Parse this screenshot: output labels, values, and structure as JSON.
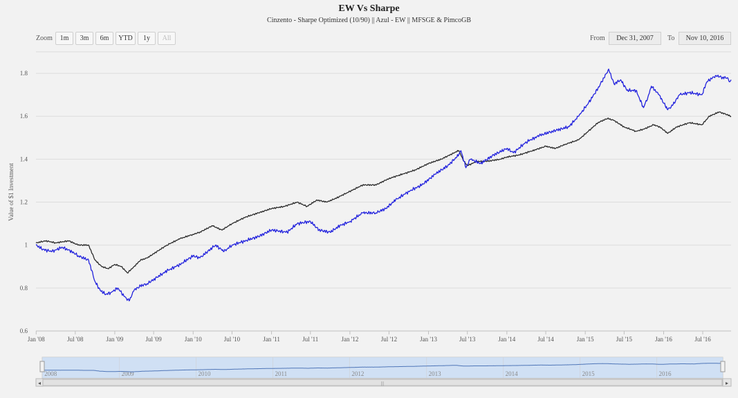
{
  "chart": {
    "title": "EW Vs Sharpe",
    "subtitle": "Cinzento - Sharpe Optimized (10/90) || Azul - EW || MFSGE & PimcoGB"
  },
  "range_selector": {
    "zoom_label": "Zoom",
    "buttons": [
      {
        "label": "1m"
      },
      {
        "label": "3m"
      },
      {
        "label": "6m"
      },
      {
        "label": "YTD"
      },
      {
        "label": "1y"
      },
      {
        "label": "All"
      }
    ],
    "from_label": "From",
    "from_value": "Dec 31, 2007",
    "to_label": "To",
    "to_value": "Nov 10, 2016"
  },
  "navigator": {
    "year_labels": [
      "2008",
      "2009",
      "2010",
      "2011",
      "2012",
      "2013",
      "2014",
      "2015",
      "2016"
    ],
    "scroll_left": "◂",
    "scroll_right": "▸",
    "grip": "|||"
  },
  "chart_data": {
    "type": "line",
    "title": "EW Vs Sharpe",
    "subtitle": "Cinzento - Sharpe Optimized (10/90) || Azul - EW || MFSGE & PimcoGB",
    "xlabel": "",
    "ylabel": "Value of $1 Investment",
    "xlim": [
      "2007-12-31",
      "2016-11-10"
    ],
    "ylim": [
      0.6,
      1.9
    ],
    "y_ticks": [
      {
        "value": 0.6,
        "label": "0.6"
      },
      {
        "value": 0.8,
        "label": "0.8"
      },
      {
        "value": 1.0,
        "label": "1"
      },
      {
        "value": 1.2,
        "label": "1.2"
      },
      {
        "value": 1.4,
        "label": "1.4"
      },
      {
        "value": 1.6,
        "label": "1.6"
      },
      {
        "value": 1.8,
        "label": "1.8"
      }
    ],
    "x_ticks": [
      {
        "date": "2008-01-01",
        "label": "Jan '08"
      },
      {
        "date": "2008-07-01",
        "label": "Jul '08"
      },
      {
        "date": "2009-01-01",
        "label": "Jan '09"
      },
      {
        "date": "2009-07-01",
        "label": "Jul '09"
      },
      {
        "date": "2010-01-01",
        "label": "Jan '10"
      },
      {
        "date": "2010-07-01",
        "label": "Jul '10"
      },
      {
        "date": "2011-01-01",
        "label": "Jan '11"
      },
      {
        "date": "2011-07-01",
        "label": "Jul '11"
      },
      {
        "date": "2012-01-01",
        "label": "Jan '12"
      },
      {
        "date": "2012-07-01",
        "label": "Jul '12"
      },
      {
        "date": "2013-01-01",
        "label": "Jan '13"
      },
      {
        "date": "2013-07-01",
        "label": "Jul '13"
      },
      {
        "date": "2014-01-01",
        "label": "Jan '14"
      },
      {
        "date": "2014-07-01",
        "label": "Jul '14"
      },
      {
        "date": "2015-01-01",
        "label": "Jan '15"
      },
      {
        "date": "2015-07-01",
        "label": "Jul '15"
      },
      {
        "date": "2016-01-01",
        "label": "Jan '16"
      },
      {
        "date": "2016-07-01",
        "label": "Jul '16"
      }
    ],
    "grid": true,
    "legend": "none",
    "series": [
      {
        "color": "#2b2b2b",
        "points": [
          [
            "2007-12-31",
            1.01
          ],
          [
            "2008-02-15",
            1.02
          ],
          [
            "2008-04-01",
            1.01
          ],
          [
            "2008-06-01",
            1.02
          ],
          [
            "2008-07-15",
            1.0
          ],
          [
            "2008-09-01",
            1.0
          ],
          [
            "2008-10-01",
            0.93
          ],
          [
            "2008-11-01",
            0.9
          ],
          [
            "2008-12-01",
            0.89
          ],
          [
            "2009-01-01",
            0.91
          ],
          [
            "2009-02-01",
            0.9
          ],
          [
            "2009-03-01",
            0.87
          ],
          [
            "2009-04-01",
            0.9
          ],
          [
            "2009-05-01",
            0.93
          ],
          [
            "2009-06-01",
            0.94
          ],
          [
            "2009-07-01",
            0.96
          ],
          [
            "2009-09-01",
            1.0
          ],
          [
            "2009-11-01",
            1.03
          ],
          [
            "2010-01-01",
            1.05
          ],
          [
            "2010-02-01",
            1.06
          ],
          [
            "2010-04-01",
            1.09
          ],
          [
            "2010-05-15",
            1.07
          ],
          [
            "2010-07-01",
            1.1
          ],
          [
            "2010-09-01",
            1.13
          ],
          [
            "2010-11-01",
            1.15
          ],
          [
            "2011-01-01",
            1.17
          ],
          [
            "2011-03-01",
            1.18
          ],
          [
            "2011-05-01",
            1.2
          ],
          [
            "2011-06-15",
            1.18
          ],
          [
            "2011-08-01",
            1.21
          ],
          [
            "2011-09-15",
            1.2
          ],
          [
            "2011-11-01",
            1.22
          ],
          [
            "2012-01-01",
            1.25
          ],
          [
            "2012-03-01",
            1.28
          ],
          [
            "2012-05-01",
            1.28
          ],
          [
            "2012-07-01",
            1.31
          ],
          [
            "2012-09-01",
            1.33
          ],
          [
            "2012-11-01",
            1.35
          ],
          [
            "2013-01-01",
            1.38
          ],
          [
            "2013-03-01",
            1.4
          ],
          [
            "2013-05-01",
            1.43
          ],
          [
            "2013-05-22",
            1.44
          ],
          [
            "2013-06-15",
            1.39
          ],
          [
            "2013-07-01",
            1.37
          ],
          [
            "2013-08-15",
            1.39
          ],
          [
            "2013-10-01",
            1.39
          ],
          [
            "2013-12-01",
            1.4
          ],
          [
            "2014-01-01",
            1.41
          ],
          [
            "2014-03-01",
            1.42
          ],
          [
            "2014-05-01",
            1.44
          ],
          [
            "2014-07-01",
            1.46
          ],
          [
            "2014-08-15",
            1.45
          ],
          [
            "2014-10-01",
            1.47
          ],
          [
            "2014-12-01",
            1.49
          ],
          [
            "2015-01-15",
            1.53
          ],
          [
            "2015-03-01",
            1.57
          ],
          [
            "2015-04-15",
            1.59
          ],
          [
            "2015-05-15",
            1.58
          ],
          [
            "2015-07-01",
            1.55
          ],
          [
            "2015-08-25",
            1.53
          ],
          [
            "2015-10-01",
            1.54
          ],
          [
            "2015-11-15",
            1.56
          ],
          [
            "2015-12-15",
            1.55
          ],
          [
            "2016-01-20",
            1.52
          ],
          [
            "2016-03-01",
            1.55
          ],
          [
            "2016-05-01",
            1.57
          ],
          [
            "2016-06-27",
            1.56
          ],
          [
            "2016-08-01",
            1.6
          ],
          [
            "2016-09-15",
            1.62
          ],
          [
            "2016-10-15",
            1.61
          ],
          [
            "2016-11-10",
            1.6
          ]
        ]
      },
      {
        "color": "#2222dd",
        "points": [
          [
            "2007-12-31",
            1.0
          ],
          [
            "2008-02-01",
            0.98
          ],
          [
            "2008-03-15",
            0.97
          ],
          [
            "2008-05-01",
            0.99
          ],
          [
            "2008-06-15",
            0.97
          ],
          [
            "2008-07-15",
            0.95
          ],
          [
            "2008-09-01",
            0.93
          ],
          [
            "2008-10-01",
            0.83
          ],
          [
            "2008-10-25",
            0.79
          ],
          [
            "2008-11-20",
            0.77
          ],
          [
            "2008-12-15",
            0.78
          ],
          [
            "2009-01-15",
            0.8
          ],
          [
            "2009-02-15",
            0.76
          ],
          [
            "2009-03-09",
            0.74
          ],
          [
            "2009-04-01",
            0.79
          ],
          [
            "2009-05-01",
            0.81
          ],
          [
            "2009-06-01",
            0.82
          ],
          [
            "2009-07-01",
            0.84
          ],
          [
            "2009-09-01",
            0.88
          ],
          [
            "2009-11-01",
            0.91
          ],
          [
            "2010-01-01",
            0.95
          ],
          [
            "2010-02-01",
            0.94
          ],
          [
            "2010-04-15",
            1.0
          ],
          [
            "2010-05-25",
            0.97
          ],
          [
            "2010-07-01",
            1.0
          ],
          [
            "2010-09-01",
            1.02
          ],
          [
            "2010-11-01",
            1.04
          ],
          [
            "2011-01-01",
            1.07
          ],
          [
            "2011-03-15",
            1.06
          ],
          [
            "2011-05-01",
            1.1
          ],
          [
            "2011-07-01",
            1.11
          ],
          [
            "2011-08-10",
            1.07
          ],
          [
            "2011-10-01",
            1.06
          ],
          [
            "2011-11-15",
            1.09
          ],
          [
            "2012-01-01",
            1.11
          ],
          [
            "2012-03-01",
            1.15
          ],
          [
            "2012-05-01",
            1.15
          ],
          [
            "2012-06-15",
            1.17
          ],
          [
            "2012-08-01",
            1.21
          ],
          [
            "2012-10-01",
            1.25
          ],
          [
            "2012-12-01",
            1.28
          ],
          [
            "2013-02-01",
            1.33
          ],
          [
            "2013-04-01",
            1.37
          ],
          [
            "2013-05-22",
            1.42
          ],
          [
            "2013-06-01",
            1.44
          ],
          [
            "2013-06-24",
            1.36
          ],
          [
            "2013-07-15",
            1.4
          ],
          [
            "2013-09-01",
            1.38
          ],
          [
            "2013-11-01",
            1.42
          ],
          [
            "2014-01-01",
            1.45
          ],
          [
            "2014-02-01",
            1.43
          ],
          [
            "2014-04-01",
            1.48
          ],
          [
            "2014-06-01",
            1.51
          ],
          [
            "2014-08-01",
            1.53
          ],
          [
            "2014-10-15",
            1.55
          ],
          [
            "2014-12-01",
            1.6
          ],
          [
            "2015-01-15",
            1.66
          ],
          [
            "2015-03-01",
            1.73
          ],
          [
            "2015-04-10",
            1.8
          ],
          [
            "2015-04-20",
            1.82
          ],
          [
            "2015-05-15",
            1.75
          ],
          [
            "2015-06-15",
            1.77
          ],
          [
            "2015-07-15",
            1.72
          ],
          [
            "2015-08-25",
            1.72
          ],
          [
            "2015-09-29",
            1.64
          ],
          [
            "2015-10-20",
            1.69
          ],
          [
            "2015-11-05",
            1.74
          ],
          [
            "2015-12-10",
            1.7
          ],
          [
            "2016-01-20",
            1.63
          ],
          [
            "2016-02-11",
            1.65
          ],
          [
            "2016-03-15",
            1.7
          ],
          [
            "2016-05-01",
            1.71
          ],
          [
            "2016-06-27",
            1.7
          ],
          [
            "2016-07-20",
            1.76
          ],
          [
            "2016-09-01",
            1.79
          ],
          [
            "2016-10-01",
            1.78
          ],
          [
            "2016-10-25",
            1.78
          ],
          [
            "2016-11-03",
            1.76
          ],
          [
            "2016-11-10",
            1.77
          ]
        ]
      }
    ]
  },
  "colors": {
    "background": "#f2f2f2",
    "series_dark": "#2b2b2b",
    "series_blue": "#2222dd",
    "navigator_mask": "#c8daf2"
  }
}
